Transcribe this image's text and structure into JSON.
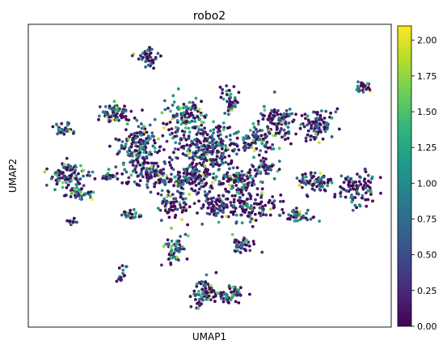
{
  "chart_data": {
    "type": "scatter",
    "title": "robo2",
    "xlabel": "UMAP1",
    "ylabel": "UMAP2",
    "xticks": [],
    "yticks": [],
    "xlim": [
      0,
      100
    ],
    "ylim": [
      0,
      100
    ],
    "colormap": "viridis",
    "colormap_stops": [
      "#440154",
      "#482777",
      "#3e4989",
      "#31688e",
      "#26828e",
      "#1f9e89",
      "#35b779",
      "#6ece58",
      "#b5de2b",
      "#fde725"
    ],
    "colorbar": {
      "range": [
        0.0,
        2.1
      ],
      "ticks": [
        0.0,
        0.25,
        0.5,
        0.75,
        1.0,
        1.25,
        1.5,
        1.75,
        2.0
      ],
      "tick_labels": [
        "0.00",
        "0.25",
        "0.50",
        "0.75",
        "1.00",
        "1.25",
        "1.50",
        "1.75",
        "2.00"
      ]
    },
    "clusters": [
      {
        "cx": 33.2,
        "cy": 89.0,
        "sx": 1.3,
        "sy": 1.4,
        "n": 45,
        "mean": 0.45
      },
      {
        "cx": 92.0,
        "cy": 79.5,
        "sx": 1.2,
        "sy": 0.9,
        "n": 28,
        "mean": 0.6
      },
      {
        "cx": 24.0,
        "cy": 70.5,
        "sx": 2.3,
        "sy": 1.5,
        "n": 80,
        "mean": 0.95
      },
      {
        "cx": 43.5,
        "cy": 69.0,
        "sx": 3.2,
        "sy": 3.2,
        "n": 130,
        "mean": 0.95
      },
      {
        "cx": 55.5,
        "cy": 75.0,
        "sx": 1.3,
        "sy": 2.3,
        "n": 40,
        "mean": 0.9
      },
      {
        "cx": 68.5,
        "cy": 67.5,
        "sx": 2.6,
        "sy": 2.6,
        "n": 95,
        "mean": 0.7
      },
      {
        "cx": 79.5,
        "cy": 66.5,
        "sx": 2.2,
        "sy": 3.0,
        "n": 90,
        "mean": 0.55
      },
      {
        "cx": 10.0,
        "cy": 65.0,
        "sx": 1.2,
        "sy": 1.0,
        "n": 30,
        "mean": 1.0
      },
      {
        "cx": 30.5,
        "cy": 59.5,
        "sx": 2.8,
        "sy": 3.4,
        "n": 150,
        "mean": 0.85
      },
      {
        "cx": 50.0,
        "cy": 59.0,
        "sx": 4.5,
        "sy": 3.6,
        "n": 240,
        "mean": 0.6
      },
      {
        "cx": 62.5,
        "cy": 62.0,
        "sx": 3.2,
        "sy": 2.2,
        "n": 80,
        "mean": 0.8
      },
      {
        "cx": 11.0,
        "cy": 50.5,
        "sx": 2.6,
        "sy": 2.2,
        "n": 90,
        "mean": 0.85
      },
      {
        "cx": 22.0,
        "cy": 50.0,
        "sx": 1.2,
        "sy": 1.0,
        "n": 25,
        "mean": 1.1
      },
      {
        "cx": 13.5,
        "cy": 44.0,
        "sx": 2.0,
        "sy": 1.0,
        "n": 40,
        "mean": 1.0
      },
      {
        "cx": 34.0,
        "cy": 50.0,
        "sx": 3.5,
        "sy": 2.2,
        "n": 110,
        "mean": 0.75
      },
      {
        "cx": 45.0,
        "cy": 49.5,
        "sx": 3.2,
        "sy": 2.5,
        "n": 130,
        "mean": 0.6
      },
      {
        "cx": 58.0,
        "cy": 48.5,
        "sx": 3.2,
        "sy": 2.4,
        "n": 110,
        "mean": 0.7
      },
      {
        "cx": 65.0,
        "cy": 52.5,
        "sx": 2.0,
        "sy": 1.5,
        "n": 45,
        "mean": 0.9
      },
      {
        "cx": 79.0,
        "cy": 48.0,
        "sx": 2.6,
        "sy": 1.4,
        "n": 70,
        "mean": 0.7
      },
      {
        "cx": 90.5,
        "cy": 46.0,
        "sx": 2.8,
        "sy": 2.5,
        "n": 95,
        "mean": 0.55
      },
      {
        "cx": 40.5,
        "cy": 40.5,
        "sx": 2.2,
        "sy": 2.8,
        "n": 70,
        "mean": 0.65
      },
      {
        "cx": 52.0,
        "cy": 40.0,
        "sx": 3.0,
        "sy": 2.6,
        "n": 90,
        "mean": 0.75
      },
      {
        "cx": 62.0,
        "cy": 40.0,
        "sx": 3.5,
        "sy": 3.0,
        "n": 100,
        "mean": 0.7
      },
      {
        "cx": 74.0,
        "cy": 37.0,
        "sx": 2.4,
        "sy": 1.4,
        "n": 45,
        "mean": 0.75
      },
      {
        "cx": 12.5,
        "cy": 35.0,
        "sx": 0.8,
        "sy": 0.4,
        "n": 12,
        "mean": 0.9
      },
      {
        "cx": 28.5,
        "cy": 37.0,
        "sx": 1.5,
        "sy": 0.6,
        "n": 25,
        "mean": 0.9
      },
      {
        "cx": 40.5,
        "cy": 25.5,
        "sx": 1.5,
        "sy": 2.4,
        "n": 60,
        "mean": 0.85
      },
      {
        "cx": 59.0,
        "cy": 27.0,
        "sx": 1.5,
        "sy": 1.3,
        "n": 40,
        "mean": 0.7
      },
      {
        "cx": 26.0,
        "cy": 17.0,
        "sx": 0.6,
        "sy": 1.3,
        "n": 15,
        "mean": 0.5
      },
      {
        "cx": 48.0,
        "cy": 11.5,
        "sx": 1.6,
        "sy": 2.4,
        "n": 70,
        "mean": 0.8
      },
      {
        "cx": 55.0,
        "cy": 11.0,
        "sx": 2.0,
        "sy": 1.4,
        "n": 55,
        "mean": 0.9
      }
    ]
  }
}
